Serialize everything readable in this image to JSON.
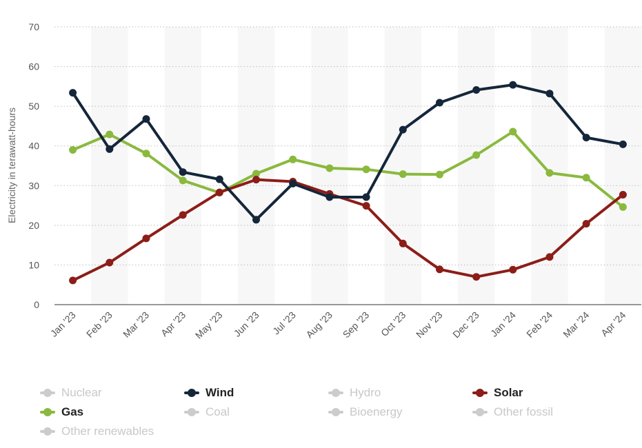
{
  "chart_data": {
    "type": "line",
    "ylabel": "Electricity in terawatt-hours",
    "ylim": [
      0,
      70
    ],
    "yticks": [
      "0",
      "10",
      "20",
      "30",
      "40",
      "50",
      "60",
      "70"
    ],
    "categories": [
      "Jan '23",
      "Feb '23",
      "Mar '23",
      "Apr '23",
      "May '23",
      "Jun '23",
      "Jul '23",
      "Aug '23",
      "Sep '23",
      "Oct '23",
      "Nov '23",
      "Dec '23",
      "Jan '24",
      "Feb '24",
      "Mar '24",
      "Apr '24"
    ],
    "series": [
      {
        "name": "Wind",
        "color": "#15263a",
        "values": [
          53.4,
          39.2,
          46.8,
          33.4,
          31.6,
          21.4,
          30.5,
          27.1,
          27.1,
          44.1,
          50.9,
          54.1,
          55.4,
          53.2,
          42.1,
          40.4
        ]
      },
      {
        "name": "Solar",
        "color": "#8c1d18",
        "values": [
          6.1,
          10.6,
          16.7,
          22.6,
          28.3,
          31.5,
          31.0,
          27.9,
          24.9,
          15.4,
          8.9,
          7.0,
          8.8,
          12.0,
          20.4,
          27.7
        ]
      },
      {
        "name": "Gas",
        "color": "#8ab93e",
        "values": [
          39.0,
          42.9,
          38.1,
          31.3,
          28.2,
          33.0,
          36.6,
          34.4,
          34.1,
          32.9,
          32.8,
          37.7,
          43.6,
          33.2,
          32.0,
          24.6
        ]
      }
    ],
    "grid": true,
    "legend_position": "bottom",
    "legend": [
      {
        "label": "Nuclear",
        "active": false
      },
      {
        "label": "Wind",
        "active": true,
        "color": "#15263a"
      },
      {
        "label": "Hydro",
        "active": false
      },
      {
        "label": "Solar",
        "active": true,
        "color": "#8c1d18"
      },
      {
        "label": "Gas",
        "active": true,
        "color": "#8ab93e"
      },
      {
        "label": "Coal",
        "active": false
      },
      {
        "label": "Bioenergy",
        "active": false
      },
      {
        "label": "Other fossil",
        "active": false
      },
      {
        "label": "Other renewables",
        "active": false
      }
    ]
  }
}
